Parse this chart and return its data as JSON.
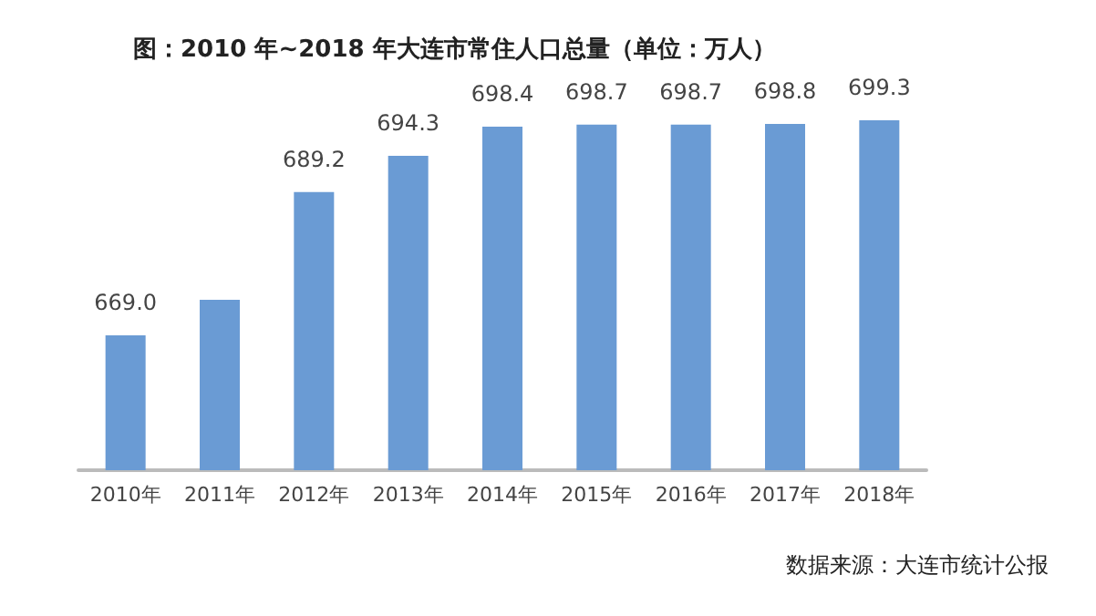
{
  "chart_data": {
    "type": "bar",
    "title": "图：2010 年~2018 年大连市常住人口总量（单位：万人）",
    "categories": [
      "2010年",
      "2011年",
      "2012年",
      "2013年",
      "2014年",
      "2015年",
      "2016年",
      "2017年",
      "2018年"
    ],
    "values": [
      669.0,
      674,
      689.2,
      694.3,
      698.4,
      698.7,
      698.7,
      698.8,
      699.3
    ],
    "value_labels": [
      "669.0",
      null,
      "689.2",
      "694.3",
      "698.4",
      "698.7",
      "698.7",
      "698.8",
      "699.3"
    ],
    "color": "#6a9bd4",
    "ylim": [
      650,
      699.3
    ],
    "annotations": [
      "数据来源：大连市统计公报"
    ]
  }
}
